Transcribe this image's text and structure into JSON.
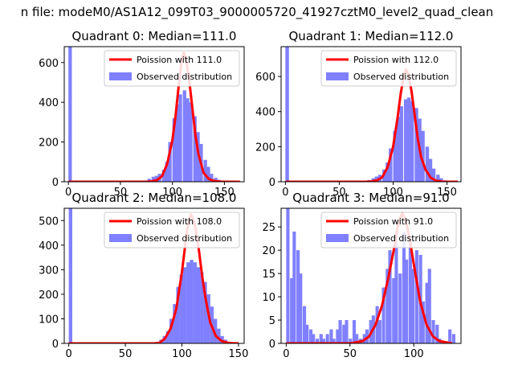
{
  "figure": {
    "suptitle": "n file: modeM0/AS1A12_099T03_9000005720_41927cztM0_level2_quad_clean"
  },
  "colors": {
    "fit_line": "#ff0000",
    "histogram": "#8080ff",
    "axis": "#000000",
    "background": "#ffffff"
  },
  "chart_data": [
    {
      "type": "bar",
      "title": "Quadrant 0: Median=111.0",
      "xlabel": "",
      "ylabel": "",
      "xlim": [
        -4,
        169
      ],
      "ylim": [
        0,
        680
      ],
      "xticks": [
        0,
        50,
        100,
        150
      ],
      "xtick_labels": [
        "0",
        "50",
        "100",
        "150"
      ],
      "yticks": [
        0,
        200,
        400,
        600
      ],
      "ytick_labels": [
        "0",
        "200",
        "400",
        "600"
      ],
      "legend_position": "top-right",
      "bin_width": 3.3,
      "series": [
        {
          "name": "Poission with 111.0",
          "kind": "line",
          "mean": 111.0,
          "peak": 650,
          "x": [
            0,
            75,
            80,
            85,
            90,
            95,
            100,
            103,
            106,
            109,
            111,
            113,
            116,
            119,
            122,
            125,
            130,
            135,
            140,
            145,
            150,
            155,
            165
          ],
          "y": [
            0,
            0,
            2,
            8,
            28,
            90,
            210,
            330,
            480,
            610,
            650,
            620,
            520,
            380,
            240,
            140,
            45,
            14,
            4,
            1,
            0,
            0,
            0
          ]
        },
        {
          "name": "Observed distribution",
          "kind": "histogram",
          "x": [
            0,
            60,
            70,
            76,
            80,
            83,
            86,
            90,
            93,
            96,
            100,
            103,
            106,
            110,
            113,
            116,
            120,
            123,
            126,
            130,
            133,
            136,
            140,
            143,
            146,
            150,
            155
          ],
          "y": [
            680,
            2,
            4,
            15,
            25,
            30,
            40,
            60,
            100,
            200,
            320,
            390,
            440,
            460,
            420,
            400,
            330,
            250,
            190,
            110,
            75,
            40,
            20,
            10,
            5,
            2,
            1
          ]
        }
      ]
    },
    {
      "type": "bar",
      "title": "Quadrant 1: Median=112.0",
      "xlabel": "",
      "ylabel": "",
      "xlim": [
        -4,
        163
      ],
      "ylim": [
        0,
        770
      ],
      "xticks": [
        0,
        50,
        100,
        150
      ],
      "xtick_labels": [
        "0",
        "50",
        "100",
        "150"
      ],
      "yticks": [
        0,
        200,
        400,
        600
      ],
      "ytick_labels": [
        "0",
        "200",
        "400",
        "600"
      ],
      "legend_position": "top-right",
      "bin_width": 3.3,
      "series": [
        {
          "name": "Poission with 112.0",
          "kind": "line",
          "mean": 112.0,
          "peak": 640,
          "x": [
            0,
            75,
            80,
            85,
            90,
            95,
            100,
            104,
            107,
            110,
            112,
            114,
            117,
            120,
            123,
            126,
            130,
            135,
            140,
            145,
            150,
            160
          ],
          "y": [
            0,
            0,
            2,
            8,
            26,
            85,
            200,
            360,
            500,
            610,
            640,
            615,
            520,
            380,
            240,
            140,
            70,
            22,
            6,
            1,
            0,
            0
          ]
        },
        {
          "name": "Observed distribution",
          "kind": "histogram",
          "x": [
            0,
            70,
            76,
            80,
            83,
            86,
            90,
            93,
            96,
            100,
            103,
            106,
            110,
            113,
            116,
            120,
            123,
            126,
            130,
            133,
            136,
            140,
            143,
            146,
            150
          ],
          "y": [
            770,
            3,
            10,
            20,
            30,
            40,
            70,
            110,
            190,
            290,
            370,
            430,
            470,
            480,
            460,
            420,
            360,
            290,
            200,
            130,
            75,
            40,
            20,
            8,
            3
          ]
        }
      ]
    },
    {
      "type": "bar",
      "title": "Quadrant 2: Median=108.0",
      "xlabel": "",
      "ylabel": "",
      "xlim": [
        -4,
        155
      ],
      "ylim": [
        0,
        550
      ],
      "xticks": [
        0,
        50,
        100,
        150
      ],
      "xtick_labels": [
        "0",
        "50",
        "100",
        "150"
      ],
      "yticks": [
        0,
        100,
        200,
        300,
        400,
        500
      ],
      "ytick_labels": [
        "0",
        "100",
        "200",
        "300",
        "400",
        "500"
      ],
      "legend_position": "top-right",
      "bin_width": 3.1,
      "series": [
        {
          "name": "Poission with 108.0",
          "kind": "line",
          "mean": 108.0,
          "peak": 525,
          "x": [
            0,
            75,
            80,
            85,
            90,
            95,
            100,
            104,
            106,
            108,
            110,
            112,
            115,
            118,
            121,
            125,
            130,
            135,
            140,
            145,
            150
          ],
          "y": [
            0,
            0,
            2,
            20,
            60,
            140,
            290,
            440,
            500,
            525,
            505,
            470,
            380,
            270,
            180,
            85,
            30,
            10,
            3,
            1,
            0
          ]
        },
        {
          "name": "Observed distribution",
          "kind": "histogram",
          "x": [
            0,
            75,
            80,
            83,
            86,
            89,
            92,
            95,
            98,
            101,
            104,
            107,
            110,
            113,
            116,
            119,
            122,
            125,
            128,
            131,
            134,
            137,
            140,
            143
          ],
          "y": [
            550,
            4,
            15,
            30,
            50,
            100,
            160,
            230,
            280,
            310,
            330,
            340,
            330,
            310,
            290,
            250,
            200,
            150,
            100,
            60,
            30,
            15,
            6,
            2
          ]
        }
      ]
    },
    {
      "type": "bar",
      "title": "Quadrant 3: Median=91.0",
      "xlabel": "",
      "ylabel": "",
      "xlim": [
        -4,
        137
      ],
      "ylim": [
        0,
        29
      ],
      "xticks": [
        0,
        50,
        100
      ],
      "xtick_labels": [
        "0",
        "50",
        "100"
      ],
      "yticks": [
        0,
        5,
        10,
        15,
        20,
        25
      ],
      "ytick_labels": [
        "0",
        "5",
        "10",
        "15",
        "20",
        "25"
      ],
      "legend_position": "top-right",
      "bin_width": 2.6,
      "series": [
        {
          "name": "Poission with 91.0",
          "kind": "line",
          "mean": 91.0,
          "peak": 28,
          "x": [
            0,
            50,
            60,
            65,
            70,
            75,
            80,
            85,
            88,
            91,
            94,
            97,
            100,
            105,
            110,
            115,
            120,
            130
          ],
          "y": [
            0,
            0,
            0.5,
            1.5,
            4,
            8,
            14,
            21,
            26,
            28,
            26,
            22,
            17,
            9,
            4,
            1.5,
            0.5,
            0
          ]
        },
        {
          "name": "Observed distribution",
          "kind": "histogram",
          "x": [
            0,
            3,
            5,
            8,
            10,
            13,
            15,
            18,
            20,
            23,
            26,
            28,
            31,
            34,
            36,
            39,
            41,
            44,
            46,
            49,
            52,
            54,
            57,
            60,
            62,
            65,
            67,
            70,
            72,
            75,
            78,
            80,
            83,
            85,
            88,
            91,
            93,
            96,
            98,
            101,
            104,
            106,
            109,
            111,
            114,
            117,
            119,
            122,
            124,
            127,
            130
          ],
          "y": [
            29,
            14,
            24,
            20,
            15,
            8,
            4,
            3,
            2,
            1,
            2,
            1,
            2,
            3,
            1,
            3,
            5,
            4,
            5,
            1,
            5,
            2,
            1,
            2,
            3,
            5,
            6,
            8,
            5,
            12,
            16,
            20,
            14,
            22,
            15,
            24,
            18,
            22,
            16,
            20,
            19,
            9,
            13,
            16,
            5,
            4,
            1,
            0,
            0,
            3,
            2
          ]
        }
      ]
    }
  ]
}
